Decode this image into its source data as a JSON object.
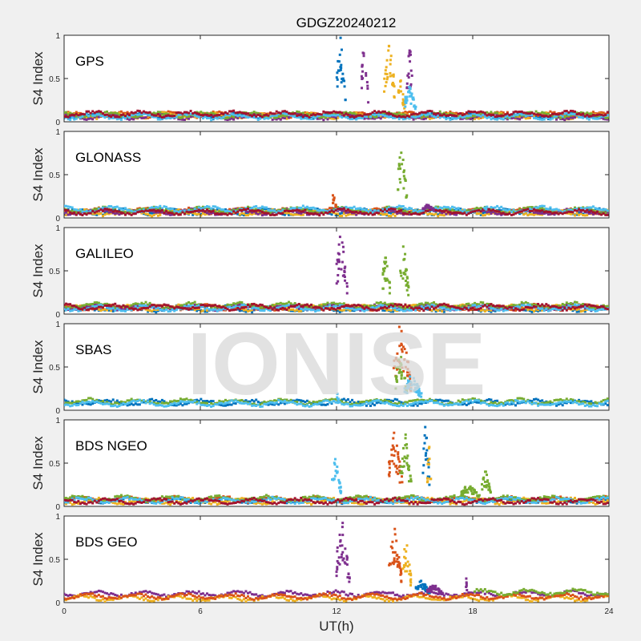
{
  "chart_data": {
    "type": "scatter",
    "title": "GDGZ20240212",
    "xlabel": "UT(h)",
    "ylabel": "S4 Index",
    "xlim": [
      0,
      24
    ],
    "ylim": [
      0,
      1
    ],
    "xticks": [
      "0",
      "6",
      "12",
      "18",
      "24"
    ],
    "yticks": [
      "0",
      "0.5",
      "1"
    ],
    "watermark": "IONISE",
    "colors": [
      "#0072BD",
      "#D95319",
      "#EDB120",
      "#7E2F8E",
      "#77AC30",
      "#4DBEEE",
      "#A2142F"
    ],
    "panels": [
      {
        "label": "GPS",
        "baseline": [
          [
            0,
            0.07
          ],
          [
            1,
            0.08
          ],
          [
            2,
            0.07
          ],
          [
            3,
            0.06
          ],
          [
            4,
            0.08
          ],
          [
            5,
            0.06
          ],
          [
            6,
            0.09
          ]
        ],
        "events": [
          [
            12.0,
            0.4,
            0.97,
            0
          ],
          [
            13.1,
            0.3,
            0.97,
            3
          ],
          [
            14.1,
            0.5,
            0.97,
            2
          ],
          [
            14.7,
            0.3,
            0.5,
            2
          ],
          [
            15.1,
            0.3,
            0.85,
            3
          ],
          [
            15.0,
            0.5,
            0.4,
            5
          ]
        ]
      },
      {
        "label": "GLONASS",
        "baseline": [
          [
            0,
            0.07
          ],
          [
            1,
            0.08
          ],
          [
            2,
            0.06
          ],
          [
            3,
            0.07
          ],
          [
            4,
            0.09
          ],
          [
            5,
            0.1
          ],
          [
            6,
            0.07
          ]
        ],
        "events": [
          [
            14.7,
            0.4,
            0.82,
            4
          ],
          [
            11.8,
            0.2,
            0.3,
            1
          ],
          [
            15.8,
            0.5,
            0.15,
            3
          ],
          [
            18.5,
            0.1,
            0.15,
            5
          ]
        ]
      },
      {
        "label": "GALILEO",
        "baseline": [
          [
            0,
            0.06
          ],
          [
            1,
            0.08
          ],
          [
            2,
            0.07
          ],
          [
            3,
            0.08
          ],
          [
            4,
            0.1
          ],
          [
            5,
            0.07
          ],
          [
            6,
            0.08
          ]
        ],
        "events": [
          [
            12.0,
            0.5,
            0.97,
            3
          ],
          [
            14.0,
            0.4,
            0.65,
            4
          ],
          [
            14.8,
            0.4,
            0.78,
            4
          ]
        ]
      },
      {
        "label": "SBAS",
        "baseline": [
          [
            0,
            0.09
          ],
          [
            4,
            0.1
          ],
          [
            5,
            0.08
          ]
        ],
        "events": [
          [
            14.5,
            0.8,
            0.97,
            1
          ],
          [
            14.6,
            0.5,
            0.7,
            4
          ],
          [
            15.0,
            0.8,
            0.4,
            5
          ],
          [
            12.0,
            0.1,
            0.2,
            5
          ]
        ]
      },
      {
        "label": "BDS NGEO",
        "baseline": [
          [
            0,
            0.07
          ],
          [
            1,
            0.08
          ],
          [
            2,
            0.06
          ],
          [
            4,
            0.09
          ],
          [
            5,
            0.07
          ],
          [
            6,
            0.06
          ]
        ],
        "events": [
          [
            11.8,
            0.4,
            0.55,
            5
          ],
          [
            14.3,
            0.6,
            0.85,
            1
          ],
          [
            14.8,
            0.5,
            0.85,
            4
          ],
          [
            15.8,
            0.3,
            0.95,
            0
          ],
          [
            16.0,
            0.2,
            0.7,
            2
          ],
          [
            17.5,
            0.8,
            0.25,
            4
          ],
          [
            18.4,
            0.4,
            0.4,
            4
          ]
        ]
      },
      {
        "label": "BDS GEO",
        "baseline": [
          [
            3,
            0.1
          ],
          [
            2,
            0.05
          ],
          [
            1,
            0.07
          ],
          [
            4,
            0.12
          ]
        ],
        "events": [
          [
            12.0,
            0.6,
            0.92,
            3
          ],
          [
            14.3,
            0.6,
            0.85,
            1
          ],
          [
            14.9,
            0.4,
            0.7,
            2
          ],
          [
            15.5,
            0.6,
            0.25,
            0
          ],
          [
            16.0,
            0.7,
            0.2,
            3
          ],
          [
            17.7,
            0.05,
            0.3,
            3
          ]
        ]
      }
    ]
  }
}
